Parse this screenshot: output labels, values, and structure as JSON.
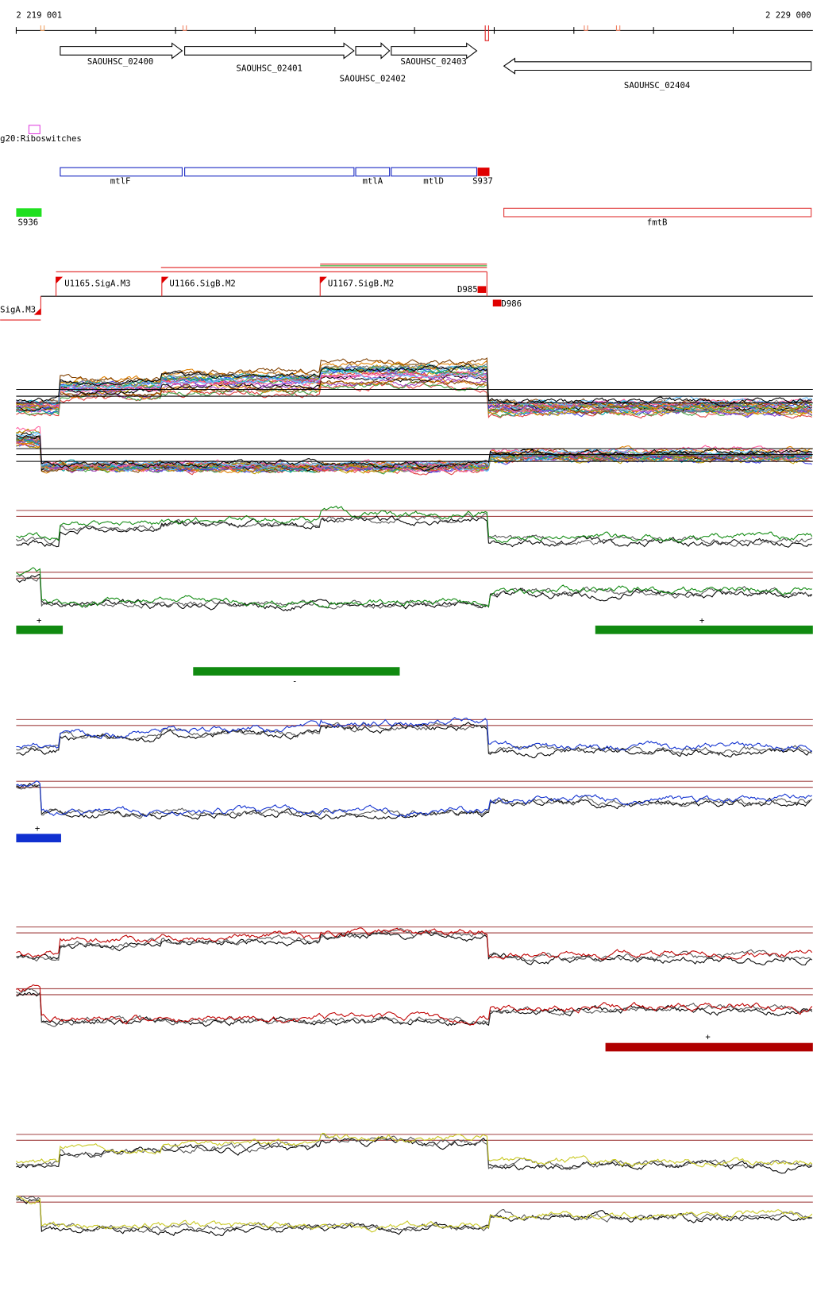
{
  "ruler": {
    "start": "2 219 001",
    "end": "2 229 000"
  },
  "genes": [
    "SAOUHSC_02400",
    "SAOUHSC_02401",
    "SAOUHSC_02402",
    "SAOUHSC_02403",
    "SAOUHSC_02404"
  ],
  "riboswitch": "g20:Riboswitches",
  "features": [
    "mtlF",
    "mtlA",
    "mtlD",
    "S937",
    "S936",
    "fmtB"
  ],
  "promoters": [
    "U1165.SigA.M3",
    "U1166.SigB.M2",
    "U1167.SigB.M2",
    "D985",
    "D986",
    "SigA.M3"
  ],
  "strands": {
    "green_plus_1": "+",
    "green_plus_2": "+",
    "green_minus": "-",
    "blue_plus": "+",
    "red_plus": "+"
  }
}
